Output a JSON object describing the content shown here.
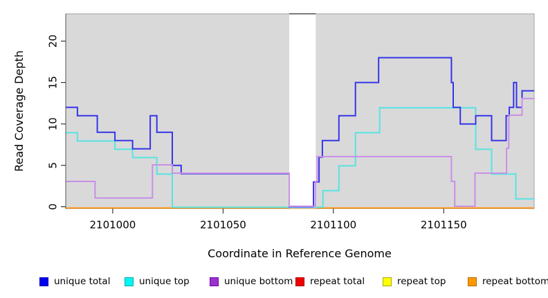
{
  "chart_data": {
    "type": "line",
    "variant": "step",
    "title": "",
    "xlabel": "Coordinate in Reference Genome",
    "ylabel": "Read Coverage Depth",
    "xlim": [
      2100978.7,
      2101191
    ],
    "ylim": [
      0,
      23.3
    ],
    "x_ticks": [
      2101000,
      2101050,
      2101100,
      2101150
    ],
    "y_ticks": [
      0,
      5,
      10,
      15,
      20
    ],
    "grid": false,
    "panel_background": "#d9d9d9",
    "panel_border": "#a3a3a3",
    "gap_band": {
      "x0": 2101080,
      "x1": 2101092,
      "fill": "#ffffff",
      "top_edge": "#7a7a7a"
    },
    "series": [
      {
        "name": "unique total",
        "color": "#3434e8",
        "steps": [
          [
            2100978.7,
            12
          ],
          [
            2100984,
            11
          ],
          [
            2100993,
            9
          ],
          [
            2101001,
            8
          ],
          [
            2101009,
            7
          ],
          [
            2101017,
            11
          ],
          [
            2101020,
            9
          ],
          [
            2101027,
            5
          ],
          [
            2101031,
            4
          ],
          [
            2101080,
            0
          ],
          [
            2101091,
            3
          ],
          [
            2101093.5,
            6
          ],
          [
            2101095,
            8
          ],
          [
            2101102.5,
            11
          ],
          [
            2101110,
            15
          ],
          [
            2101120.5,
            18
          ],
          [
            2101153.5,
            15
          ],
          [
            2101154.3,
            12
          ],
          [
            2101157.5,
            10
          ],
          [
            2101164.5,
            11
          ],
          [
            2101171.7,
            8
          ],
          [
            2101178.3,
            11
          ],
          [
            2101179.7,
            12
          ],
          [
            2101181.7,
            15
          ],
          [
            2101183,
            12
          ],
          [
            2101185.5,
            14
          ]
        ]
      },
      {
        "name": "unique top",
        "color": "#57e3e3",
        "steps": [
          [
            2100978.7,
            9
          ],
          [
            2100984,
            8
          ],
          [
            2101001,
            7
          ],
          [
            2101009,
            6
          ],
          [
            2101020,
            4
          ],
          [
            2101027,
            0
          ],
          [
            2101095.3,
            2
          ],
          [
            2101102.5,
            5
          ],
          [
            2101110,
            9
          ],
          [
            2101121,
            12
          ],
          [
            2101164.5,
            7
          ],
          [
            2101171.7,
            4
          ],
          [
            2101182.7,
            1
          ]
        ]
      },
      {
        "name": "unique bottom",
        "color": "#c98fe6",
        "steps": [
          [
            2100978.7,
            3
          ],
          [
            2100992,
            1
          ],
          [
            2101018,
            5
          ],
          [
            2101027,
            4
          ],
          [
            2101080,
            0
          ],
          [
            2101091.8,
            3
          ],
          [
            2101092.7,
            6
          ],
          [
            2101153.5,
            3
          ],
          [
            2101155,
            0
          ],
          [
            2101164.2,
            4
          ],
          [
            2101178.5,
            7
          ],
          [
            2101179.5,
            11
          ],
          [
            2101185.5,
            13
          ]
        ]
      },
      {
        "name": "repeat total",
        "color": "#e03232",
        "steps": [
          [
            2100978.7,
            0
          ]
        ]
      },
      {
        "name": "repeat top",
        "color": "#f0f000",
        "steps": [
          [
            2100978.7,
            0
          ]
        ]
      },
      {
        "name": "repeat bottom",
        "color": "#ff9818",
        "steps": [
          [
            2100978.7,
            0
          ]
        ]
      }
    ],
    "legend": {
      "position": "bottom",
      "items": [
        {
          "label": "unique total",
          "fill": "#0000ee",
          "border": "#0000b0"
        },
        {
          "label": "unique top",
          "fill": "#00f5f5",
          "border": "#00a8a8"
        },
        {
          "label": "unique bottom",
          "fill": "#9932cc",
          "border": "#6e00a8"
        },
        {
          "label": "repeat total",
          "fill": "#ee0000",
          "border": "#a80000"
        },
        {
          "label": "repeat top",
          "fill": "#ffff00",
          "border": "#a8a800"
        },
        {
          "label": "repeat bottom",
          "fill": "#ff9900",
          "border": "#b36b00"
        }
      ]
    }
  }
}
